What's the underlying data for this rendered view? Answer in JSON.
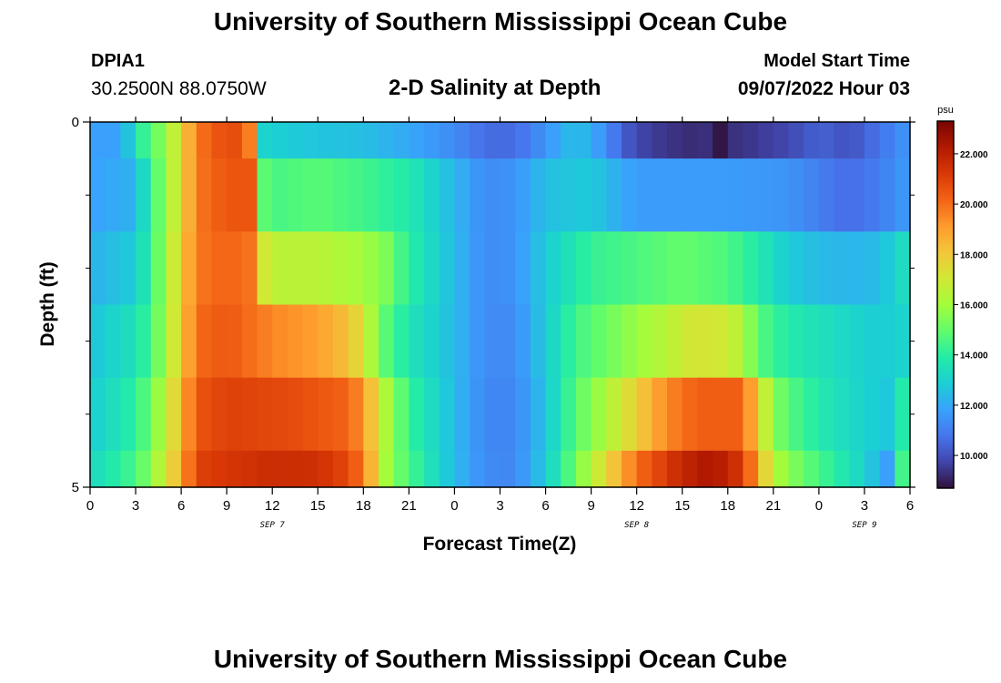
{
  "header": {
    "title": "University of Southern Mississippi Ocean Cube",
    "station_id": "DPIA1",
    "station_coords": "30.2500N  88.0750W",
    "subtitle": "2-D Salinity at Depth",
    "model_start_label": "Model Start Time",
    "model_start_time": "09/07/2022 Hour 03"
  },
  "footer": {
    "title": "University of Southern Mississippi Ocean Cube"
  },
  "chart_data": {
    "type": "heatmap",
    "xlabel": "Forecast Time(Z)",
    "ylabel": "Depth (ft)",
    "x_unit": "hours since 2022-09-07 00Z",
    "xlim": [
      0,
      54
    ],
    "x_ticks": [
      0,
      3,
      6,
      9,
      12,
      15,
      18,
      21,
      24,
      27,
      30,
      33,
      36,
      39,
      42,
      45,
      48,
      51,
      54
    ],
    "x_tick_labels": [
      "0",
      "3",
      "6",
      "9",
      "12",
      "15",
      "18",
      "21",
      "0",
      "3",
      "6",
      "9",
      "12",
      "15",
      "18",
      "21",
      "0",
      "3",
      "6"
    ],
    "day_labels": [
      {
        "text": "SEP 7",
        "x": 12
      },
      {
        "text": "SEP 8",
        "x": 36
      },
      {
        "text": "SEP 9",
        "x": 51
      }
    ],
    "ylim": [
      0,
      5
    ],
    "y_tick_labels": [
      {
        "value": 0,
        "label": "0"
      },
      {
        "value": 5,
        "label": "5"
      }
    ],
    "y_minor_ticks": [
      1,
      2,
      3,
      4
    ],
    "layer_bounds": [
      0,
      0.5,
      1.5,
      2.5,
      3.5,
      4.5,
      5
    ],
    "colorbar": {
      "unit": "psu",
      "vmin": 8.7,
      "vmax": 23.3,
      "ticks": [
        10,
        12,
        14,
        16,
        18,
        20,
        22
      ],
      "tick_labels": [
        "10.000",
        "12.000",
        "14.000",
        "16.000",
        "18.000",
        "20.000",
        "22.000"
      ],
      "colormap": [
        "#30123b",
        "#4145ab",
        "#4675ed",
        "#39a2fc",
        "#1bcfd4",
        "#24eca6",
        "#61fc6c",
        "#a4fc3b",
        "#d1e834",
        "#f3c63a",
        "#fe9b2d",
        "#f36315",
        "#d93806",
        "#b11901",
        "#7a0402"
      ]
    },
    "layers": [
      {
        "name": "0",
        "knots": [
          [
            0,
            11.8
          ],
          [
            2,
            11.8
          ],
          [
            3.5,
            14.2
          ],
          [
            5,
            15.8
          ],
          [
            6,
            17.5
          ],
          [
            7,
            19.8
          ],
          [
            9,
            20.8
          ],
          [
            10.4,
            20.5
          ],
          [
            11,
            15.5
          ],
          [
            11.5,
            13.0
          ],
          [
            14,
            12.7
          ],
          [
            18,
            12.5
          ],
          [
            21,
            12.0
          ],
          [
            24,
            11.3
          ],
          [
            26,
            10.6
          ],
          [
            28,
            10.6
          ],
          [
            30,
            11.5
          ],
          [
            32,
            12.6
          ],
          [
            34,
            11.4
          ],
          [
            35,
            10.4
          ],
          [
            36,
            9.8
          ],
          [
            38,
            9.4
          ],
          [
            40,
            9.2
          ],
          [
            41,
            9.4
          ],
          [
            41.1,
            8.8
          ],
          [
            41.5,
            8.8
          ],
          [
            41.6,
            9.2
          ],
          [
            43,
            9.4
          ],
          [
            46,
            9.8
          ],
          [
            48,
            10.4
          ],
          [
            50,
            10.0
          ],
          [
            51.5,
            10.6
          ],
          [
            53,
            11.2
          ],
          [
            54,
            11.6
          ]
        ]
      },
      {
        "name": "1",
        "knots": [
          [
            0,
            11.8
          ],
          [
            3,
            12.2
          ],
          [
            4,
            14.2
          ],
          [
            5,
            15.8
          ],
          [
            6,
            17.5
          ],
          [
            7,
            19.8
          ],
          [
            9,
            20.5
          ],
          [
            10.8,
            20.5
          ],
          [
            11.3,
            15.0
          ],
          [
            12,
            14.5
          ],
          [
            15,
            14.8
          ],
          [
            18,
            14.4
          ],
          [
            21,
            13.8
          ],
          [
            24,
            12.3
          ],
          [
            26,
            11.3
          ],
          [
            28,
            11.5
          ],
          [
            30,
            12.5
          ],
          [
            33,
            12.8
          ],
          [
            35,
            12.0
          ],
          [
            36,
            11.7
          ],
          [
            42,
            11.7
          ],
          [
            46,
            11.5
          ],
          [
            48,
            11.0
          ],
          [
            50,
            10.6
          ],
          [
            51.5,
            10.9
          ],
          [
            53,
            11.3
          ],
          [
            54,
            11.8
          ]
        ]
      },
      {
        "name": "2",
        "knots": [
          [
            0,
            12.2
          ],
          [
            3,
            12.8
          ],
          [
            4,
            14.2
          ],
          [
            5,
            16.0
          ],
          [
            6,
            17.8
          ],
          [
            7,
            19.8
          ],
          [
            9,
            20.2
          ],
          [
            11,
            19.8
          ],
          [
            11.6,
            16.5
          ],
          [
            15,
            16.5
          ],
          [
            18,
            16.0
          ],
          [
            19.5,
            15.4
          ],
          [
            21,
            14.0
          ],
          [
            24,
            12.4
          ],
          [
            26,
            11.3
          ],
          [
            28,
            11.5
          ],
          [
            30,
            12.8
          ],
          [
            33,
            14.2
          ],
          [
            36,
            14.6
          ],
          [
            39,
            15.0
          ],
          [
            42,
            14.6
          ],
          [
            44,
            13.8
          ],
          [
            46,
            12.8
          ],
          [
            48,
            12.4
          ],
          [
            50,
            12.3
          ],
          [
            52,
            12.4
          ],
          [
            53.5,
            13.3
          ],
          [
            54,
            13.8
          ]
        ]
      },
      {
        "name": "3",
        "knots": [
          [
            0,
            12.6
          ],
          [
            3,
            13.5
          ],
          [
            4,
            14.5
          ],
          [
            5,
            16.0
          ],
          [
            6,
            18.0
          ],
          [
            7,
            20.0
          ],
          [
            9,
            20.5
          ],
          [
            12,
            19.5
          ],
          [
            15,
            19.0
          ],
          [
            17,
            18.2
          ],
          [
            18,
            17.2
          ],
          [
            19,
            15.2
          ],
          [
            21,
            13.6
          ],
          [
            24,
            12.4
          ],
          [
            26,
            11.3
          ],
          [
            28,
            11.3
          ],
          [
            30,
            12.8
          ],
          [
            32,
            14.4
          ],
          [
            35,
            15.5
          ],
          [
            38,
            16.5
          ],
          [
            40,
            17.2
          ],
          [
            42,
            17.0
          ],
          [
            43,
            16.2
          ],
          [
            44,
            14.8
          ],
          [
            46,
            13.8
          ],
          [
            49,
            13.3
          ],
          [
            52,
            12.8
          ],
          [
            53.5,
            13.0
          ],
          [
            54,
            13.8
          ]
        ]
      },
      {
        "name": "4",
        "knots": [
          [
            0,
            12.8
          ],
          [
            3,
            14.0
          ],
          [
            4,
            15.2
          ],
          [
            5,
            16.5
          ],
          [
            6,
            18.5
          ],
          [
            7,
            20.5
          ],
          [
            9,
            21.0
          ],
          [
            13,
            20.8
          ],
          [
            17,
            20.2
          ],
          [
            18,
            19.2
          ],
          [
            19.5,
            16.2
          ],
          [
            21,
            14.2
          ],
          [
            24,
            12.4
          ],
          [
            26,
            11.2
          ],
          [
            28,
            11.2
          ],
          [
            30,
            12.6
          ],
          [
            32,
            14.8
          ],
          [
            34,
            16.2
          ],
          [
            36,
            17.8
          ],
          [
            38,
            19.5
          ],
          [
            40,
            20.3
          ],
          [
            43,
            20.3
          ],
          [
            44,
            17.8
          ],
          [
            45,
            15.5
          ],
          [
            47,
            14.2
          ],
          [
            49,
            13.5
          ],
          [
            51,
            13.0
          ],
          [
            53,
            12.6
          ],
          [
            54,
            15.0
          ]
        ]
      },
      {
        "name": "5",
        "knots": [
          [
            0,
            13.2
          ],
          [
            3,
            14.5
          ],
          [
            4,
            15.6
          ],
          [
            5,
            17.0
          ],
          [
            6,
            18.8
          ],
          [
            7,
            21.0
          ],
          [
            9,
            21.3
          ],
          [
            12,
            21.6
          ],
          [
            15,
            21.5
          ],
          [
            17,
            20.8
          ],
          [
            18,
            19.8
          ],
          [
            19.5,
            16.0
          ],
          [
            20.5,
            15.0
          ],
          [
            22,
            13.8
          ],
          [
            24,
            12.4
          ],
          [
            26,
            11.3
          ],
          [
            28,
            11.2
          ],
          [
            30,
            12.8
          ],
          [
            32,
            15.2
          ],
          [
            34,
            17.5
          ],
          [
            36,
            20.0
          ],
          [
            39,
            21.8
          ],
          [
            41,
            22.4
          ],
          [
            43,
            21.2
          ],
          [
            44,
            18.8
          ],
          [
            45,
            16.3
          ],
          [
            47,
            15.0
          ],
          [
            49,
            14.0
          ],
          [
            51,
            13.0
          ],
          [
            52.5,
            11.8
          ],
          [
            53.3,
            14.0
          ],
          [
            54,
            15.5
          ]
        ]
      }
    ]
  }
}
